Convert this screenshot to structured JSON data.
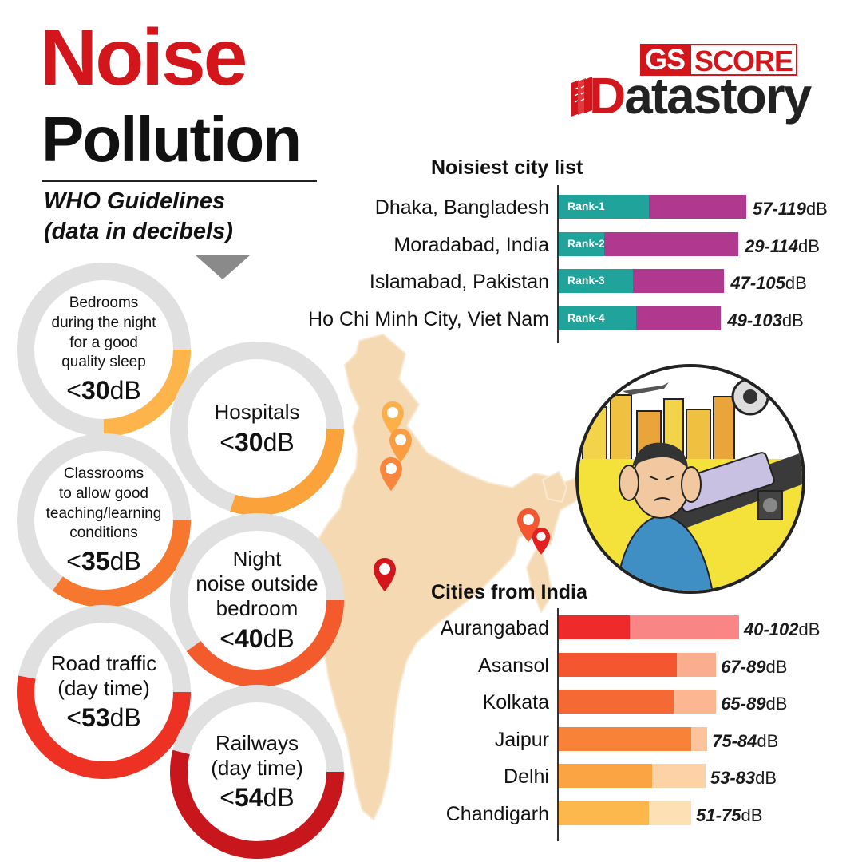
{
  "title": {
    "line1": "Noise",
    "line2": "Pollution"
  },
  "subtitle": {
    "line1": "WHO Guidelines",
    "line2": "(data in decibels)"
  },
  "logo": {
    "top": {
      "gs": "GS",
      "score": "SCORE"
    },
    "bottom": {
      "initial": "D",
      "rest": "atastory"
    }
  },
  "colors": {
    "accent_red": "#d2161c",
    "teal": "#1fa39a",
    "magenta": "#b0388e",
    "map": "#f5d9b3"
  },
  "guidelines": [
    {
      "desc_lines": [
        "Bedrooms",
        "during the night",
        "for a good",
        "quality sleep"
      ],
      "value": "30",
      "prefix": "<",
      "unit": "dB",
      "fraction": 0.25,
      "color": "#fdb44b"
    },
    {
      "desc_lines": [
        "Hospitals"
      ],
      "value": "30",
      "prefix": "<",
      "unit": "dB",
      "fraction": 0.3,
      "color": "#fba33a"
    },
    {
      "desc_lines": [
        "Classrooms",
        "to allow good",
        "teaching/learning",
        "conditions"
      ],
      "value": "35",
      "prefix": "<",
      "unit": "dB",
      "fraction": 0.35,
      "color": "#f8772f"
    },
    {
      "desc_lines": [
        "Night",
        "noise outside",
        "bedroom"
      ],
      "value": "40",
      "prefix": "<",
      "unit": "dB",
      "fraction": 0.4,
      "color": "#f45b2c"
    },
    {
      "desc_lines": [
        "Road traffic",
        "(day time)"
      ],
      "value": "53",
      "prefix": "<",
      "unit": "dB",
      "fraction": 0.53,
      "color": "#ed3224"
    },
    {
      "desc_lines": [
        "Railways",
        "(day time)"
      ],
      "value": "54",
      "prefix": "<",
      "unit": "dB",
      "fraction": 0.54,
      "color": "#c8161d"
    }
  ],
  "chart_data": [
    {
      "type": "bar",
      "title": "Noisiest city list",
      "categories": [
        "Dhaka, Bangladesh",
        "Moradabad, India",
        "Islamabad, Pakistan",
        "Ho Chi Minh City, Viet Nam"
      ],
      "ranks": [
        "Rank-1",
        "Rank-2",
        "Rank-3",
        "Rank-4"
      ],
      "min": [
        57,
        29,
        47,
        49
      ],
      "max": [
        119,
        114,
        105,
        103
      ],
      "range_labels": [
        "57-119",
        "29-114",
        "47-105",
        "49-103"
      ],
      "unit": "dB",
      "colors": {
        "min": "#1fa39a",
        "max": "#b0388e"
      }
    },
    {
      "type": "bar",
      "title": "Cities from India",
      "categories": [
        "Aurangabad",
        "Asansol",
        "Kolkata",
        "Jaipur",
        "Delhi",
        "Chandigarh"
      ],
      "min": [
        40,
        67,
        65,
        75,
        53,
        51
      ],
      "max": [
        102,
        89,
        89,
        84,
        83,
        75
      ],
      "range_labels": [
        "40-102",
        "67-89",
        "65-89",
        "75-84",
        "53-83",
        "51-75"
      ],
      "unit": "dB",
      "colors": {
        "min": [
          "#ee2b2a",
          "#f4572f",
          "#f56a34",
          "#f88338",
          "#faa444",
          "#fcb84c"
        ],
        "max": [
          "#f98585",
          "#fbad90",
          "#fcb792",
          "#fdc49c",
          "#fdd2a6",
          "#fde0b3"
        ]
      }
    }
  ]
}
